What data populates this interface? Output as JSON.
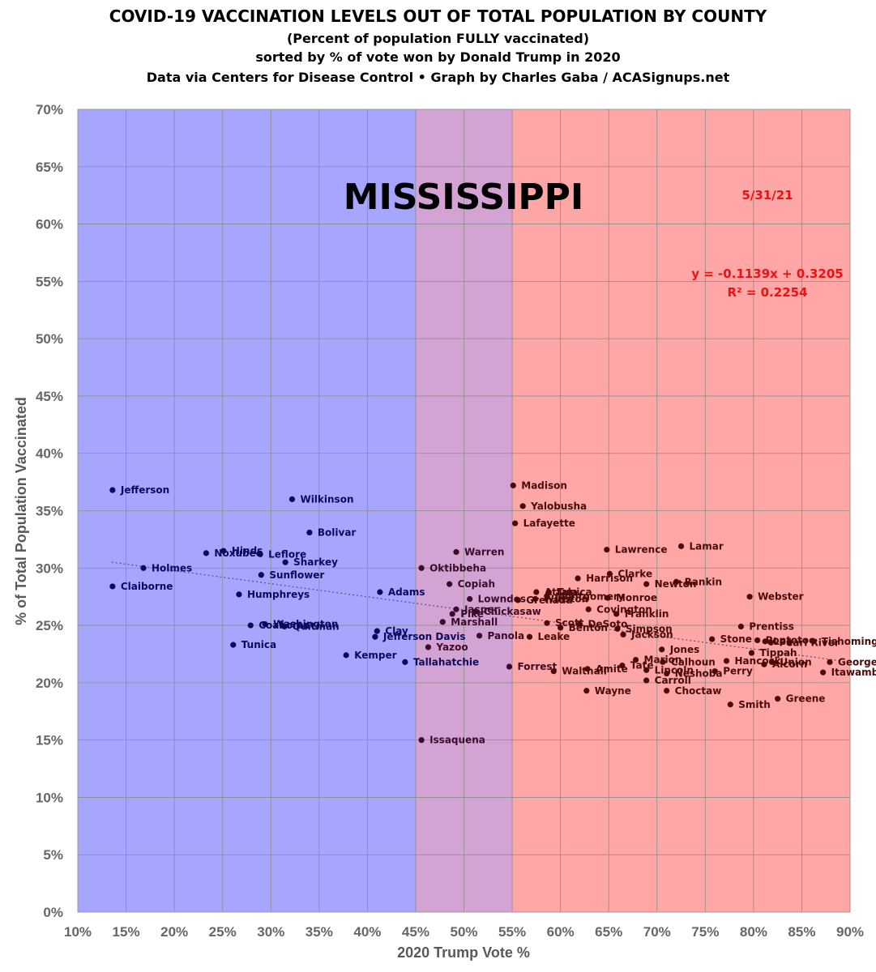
{
  "header": {
    "title": "COVID-19 VACCINATION LEVELS OUT OF TOTAL POPULATION BY COUNTY",
    "subtitle": "(Percent of population FULLY vaccinated)",
    "sort_note": "sorted by % of vote won by Donald Trump in 2020",
    "credit": "Data via Centers for Disease Control • Graph by Charles Gaba / ACASignups.net"
  },
  "chart_data": {
    "type": "scatter",
    "state": "MISSISSIPPI",
    "date": "5/31/21",
    "equation": "y = -0.1139x + 0.3205",
    "r_squared": "R² = 0.2254",
    "xlabel": "2020 Trump Vote %",
    "ylabel": "% of Total Population Vaccinated",
    "xlim": [
      10,
      90
    ],
    "ylim": [
      0,
      70
    ],
    "x_ticks": [
      "10%",
      "15%",
      "20%",
      "25%",
      "30%",
      "35%",
      "40%",
      "45%",
      "50%",
      "55%",
      "60%",
      "65%",
      "70%",
      "75%",
      "80%",
      "85%",
      "90%"
    ],
    "y_ticks": [
      "0%",
      "5%",
      "10%",
      "15%",
      "20%",
      "25%",
      "30%",
      "35%",
      "40%",
      "45%",
      "50%",
      "55%",
      "60%",
      "65%",
      "70%"
    ],
    "bands": [
      {
        "from": 10,
        "to": 45,
        "color": "#a6a6ff"
      },
      {
        "from": 45,
        "to": 55,
        "color": "#d3a3d3"
      },
      {
        "from": 55,
        "to": 90,
        "color": "#ffa6a6"
      }
    ],
    "trendline": {
      "slope": -0.1139,
      "intercept": 0.3205,
      "x_from": 13.5,
      "x_to": 89
    },
    "colors": {
      "dem": "#0a0a5c",
      "mixed": "#3c0a28",
      "gop": "#4a0a0a"
    },
    "points": [
      {
        "county": "Jefferson",
        "x": 13.6,
        "y": 36.8
      },
      {
        "county": "Claiborne",
        "x": 13.6,
        "y": 28.4
      },
      {
        "county": "Holmes",
        "x": 16.8,
        "y": 30.0
      },
      {
        "county": "Noxubee",
        "x": 23.3,
        "y": 31.3
      },
      {
        "county": "Hinds",
        "x": 25.1,
        "y": 31.5
      },
      {
        "county": "Leflore",
        "x": 28.9,
        "y": 31.2
      },
      {
        "county": "Humphreys",
        "x": 26.7,
        "y": 27.7
      },
      {
        "county": "Tunica",
        "x": 26.1,
        "y": 23.3
      },
      {
        "county": "Coahoma",
        "x": 27.9,
        "y": 25.0
      },
      {
        "county": "Washington",
        "x": 29.4,
        "y": 25.1
      },
      {
        "county": "Quitman",
        "x": 31.4,
        "y": 24.9
      },
      {
        "county": "Sunflower",
        "x": 29.0,
        "y": 29.4
      },
      {
        "county": "Sharkey",
        "x": 31.5,
        "y": 30.5
      },
      {
        "county": "Wilkinson",
        "x": 32.2,
        "y": 36.0
      },
      {
        "county": "Bolivar",
        "x": 34.0,
        "y": 33.1
      },
      {
        "county": "Kemper",
        "x": 37.8,
        "y": 22.4
      },
      {
        "county": "Adams",
        "x": 41.3,
        "y": 27.9
      },
      {
        "county": "Clay",
        "x": 41.0,
        "y": 24.5
      },
      {
        "county": "Jefferson Davis",
        "x": 40.8,
        "y": 24.0
      },
      {
        "county": "Tallahatchie",
        "x": 43.9,
        "y": 21.8
      },
      {
        "county": "Issaquena",
        "x": 45.6,
        "y": 15.0
      },
      {
        "county": "Oktibbeha",
        "x": 45.6,
        "y": 30.0
      },
      {
        "county": "Yazoo",
        "x": 46.3,
        "y": 23.1
      },
      {
        "county": "Marshall",
        "x": 47.8,
        "y": 25.3
      },
      {
        "county": "Copiah",
        "x": 48.5,
        "y": 28.6
      },
      {
        "county": "Pike",
        "x": 48.8,
        "y": 26.0
      },
      {
        "county": "Jasper",
        "x": 49.2,
        "y": 26.4
      },
      {
        "county": "Warren",
        "x": 49.2,
        "y": 31.4
      },
      {
        "county": "Lowndes",
        "x": 50.6,
        "y": 27.3
      },
      {
        "county": "Chickasaw",
        "x": 51.2,
        "y": 26.2
      },
      {
        "county": "Panola",
        "x": 51.6,
        "y": 24.1
      },
      {
        "county": "Forrest",
        "x": 54.7,
        "y": 21.4
      },
      {
        "county": "Madison",
        "x": 55.1,
        "y": 37.2
      },
      {
        "county": "Lafayette",
        "x": 55.3,
        "y": 33.9
      },
      {
        "county": "Yalobusha",
        "x": 56.1,
        "y": 35.4
      },
      {
        "county": "Grenada",
        "x": 55.6,
        "y": 27.2
      },
      {
        "county": "Leake",
        "x": 56.8,
        "y": 24.0
      },
      {
        "county": "Attala",
        "x": 57.5,
        "y": 27.9
      },
      {
        "county": "Winston",
        "x": 57.4,
        "y": 27.3
      },
      {
        "county": "Montgomery",
        "x": 58.6,
        "y": 27.5
      },
      {
        "county": "Tunica2",
        "x": 58.8,
        "y": 27.9
      },
      {
        "county": "Scott",
        "x": 58.6,
        "y": 25.2
      },
      {
        "county": "Walthall",
        "x": 59.3,
        "y": 21.0
      },
      {
        "county": "Benton",
        "x": 60.0,
        "y": 24.8
      },
      {
        "county": "Harrison",
        "x": 61.8,
        "y": 29.1
      },
      {
        "county": "Covington",
        "x": 62.9,
        "y": 26.4
      },
      {
        "county": "DeSoto",
        "x": 62.0,
        "y": 25.1
      },
      {
        "county": "Amite",
        "x": 62.8,
        "y": 21.2
      },
      {
        "county": "Wayne",
        "x": 62.7,
        "y": 19.3
      },
      {
        "county": "Lawrence",
        "x": 64.8,
        "y": 31.6
      },
      {
        "county": "Clarke",
        "x": 65.1,
        "y": 29.5
      },
      {
        "county": "Monroe",
        "x": 64.9,
        "y": 27.4
      },
      {
        "county": "Franklin",
        "x": 65.8,
        "y": 26.0
      },
      {
        "county": "Simpson",
        "x": 65.9,
        "y": 24.7
      },
      {
        "county": "Jackson",
        "x": 66.5,
        "y": 24.2
      },
      {
        "county": "Tate",
        "x": 66.4,
        "y": 21.5
      },
      {
        "county": "Lincoln",
        "x": 68.9,
        "y": 21.1
      },
      {
        "county": "Marion",
        "x": 67.8,
        "y": 22.0
      },
      {
        "county": "Newton",
        "x": 68.9,
        "y": 28.6
      },
      {
        "county": "Carroll",
        "x": 68.9,
        "y": 20.2
      },
      {
        "county": "Jones",
        "x": 70.5,
        "y": 22.9
      },
      {
        "county": "Calhoun",
        "x": 70.6,
        "y": 21.8
      },
      {
        "county": "Choctaw",
        "x": 71.0,
        "y": 19.3
      },
      {
        "county": "Neshoba",
        "x": 71.0,
        "y": 20.8
      },
      {
        "county": "Rankin",
        "x": 72.0,
        "y": 28.8
      },
      {
        "county": "Lamar",
        "x": 72.5,
        "y": 31.9
      },
      {
        "county": "Stone",
        "x": 75.7,
        "y": 23.8
      },
      {
        "county": "Perry",
        "x": 76.0,
        "y": 21.0
      },
      {
        "county": "Hancock",
        "x": 77.2,
        "y": 21.9
      },
      {
        "county": "Smith",
        "x": 77.6,
        "y": 18.1
      },
      {
        "county": "Prentiss",
        "x": 78.7,
        "y": 24.9
      },
      {
        "county": "Webster",
        "x": 79.6,
        "y": 27.5
      },
      {
        "county": "Tippah",
        "x": 79.8,
        "y": 22.6
      },
      {
        "county": "Pontotoc",
        "x": 80.4,
        "y": 23.7
      },
      {
        "county": "Lee",
        "x": 81.2,
        "y": 23.6
      },
      {
        "county": "Alcorn",
        "x": 81.1,
        "y": 21.6
      },
      {
        "county": "Union",
        "x": 81.9,
        "y": 21.8
      },
      {
        "county": "Pearl River",
        "x": 81.8,
        "y": 23.5
      },
      {
        "county": "Greene",
        "x": 82.5,
        "y": 18.6
      },
      {
        "county": "Itawamba",
        "x": 87.2,
        "y": 20.9
      },
      {
        "county": "Tishomingo",
        "x": 86.2,
        "y": 23.6
      },
      {
        "county": "George",
        "x": 87.9,
        "y": 21.8
      }
    ]
  }
}
